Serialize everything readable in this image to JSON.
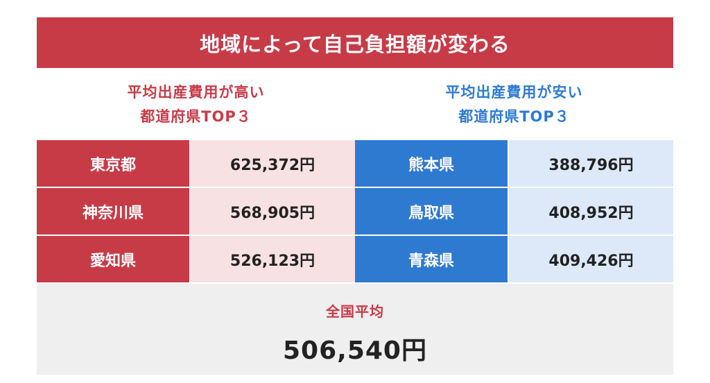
{
  "title": "地域によって自己負担額が変わる",
  "high": {
    "heading_line1": "平均出産費用が高い",
    "heading_line2": "都道府県TOP３",
    "rows": [
      {
        "pref": "東京都",
        "value": "625,372円"
      },
      {
        "pref": "神奈川県",
        "value": "568,905円"
      },
      {
        "pref": "愛知県",
        "value": "526,123円"
      }
    ]
  },
  "low": {
    "heading_line1": "平均出産費用が安い",
    "heading_line2": "都道府県TOP３",
    "rows": [
      {
        "pref": "熊本県",
        "value": "388,796円"
      },
      {
        "pref": "鳥取県",
        "value": "408,952円"
      },
      {
        "pref": "青森県",
        "value": "409,426円"
      }
    ]
  },
  "national_average": {
    "label": "全国平均",
    "value": "506,540円"
  },
  "colors": {
    "red": "#c73b47",
    "red_light": "#f8e1e3",
    "blue": "#2f7ad1",
    "blue_light": "#dde9f8",
    "gray": "#efefef"
  }
}
